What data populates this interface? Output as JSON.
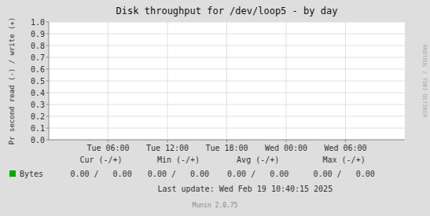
{
  "chart_data": {
    "type": "line",
    "title": "Disk throughput for /dev/loop5 - by day",
    "y_label": "Pr second read (-) / write (+)",
    "categories": [
      "Tue 06:00",
      "Tue 12:00",
      "Tue 18:00",
      "Wed 00:00",
      "Wed 06:00"
    ],
    "series": [
      {
        "name": "Bytes",
        "color": "#00aa00"
      }
    ],
    "ylim": [
      0.0,
      1.0
    ],
    "yticks": [
      {
        "value": 0.0,
        "label": "0.0"
      },
      0.1,
      0.2,
      0.3,
      0.4,
      0.5,
      0.6,
      0.7,
      0.8,
      0.9,
      {
        "value": 1.0,
        "label": "1.0"
      }
    ],
    "grid": true,
    "stats": [
      {
        "header": "Cur (-/+)",
        "label": "0.00 /   0.00"
      },
      {
        "header": "Min (-/+)",
        "label": "0.00 /   0.00"
      },
      {
        "header": "Avg (-/+)",
        "label": "0.00 /   0.00"
      },
      {
        "header": "Max (-/+)",
        "label": "0.00 /   0.00"
      }
    ],
    "annotations": [
      "Last update: Wed Feb 19 10:40:15 2025",
      "Munin 2.0.75",
      "RRDTOOL / TOBI OETIKER"
    ]
  }
}
